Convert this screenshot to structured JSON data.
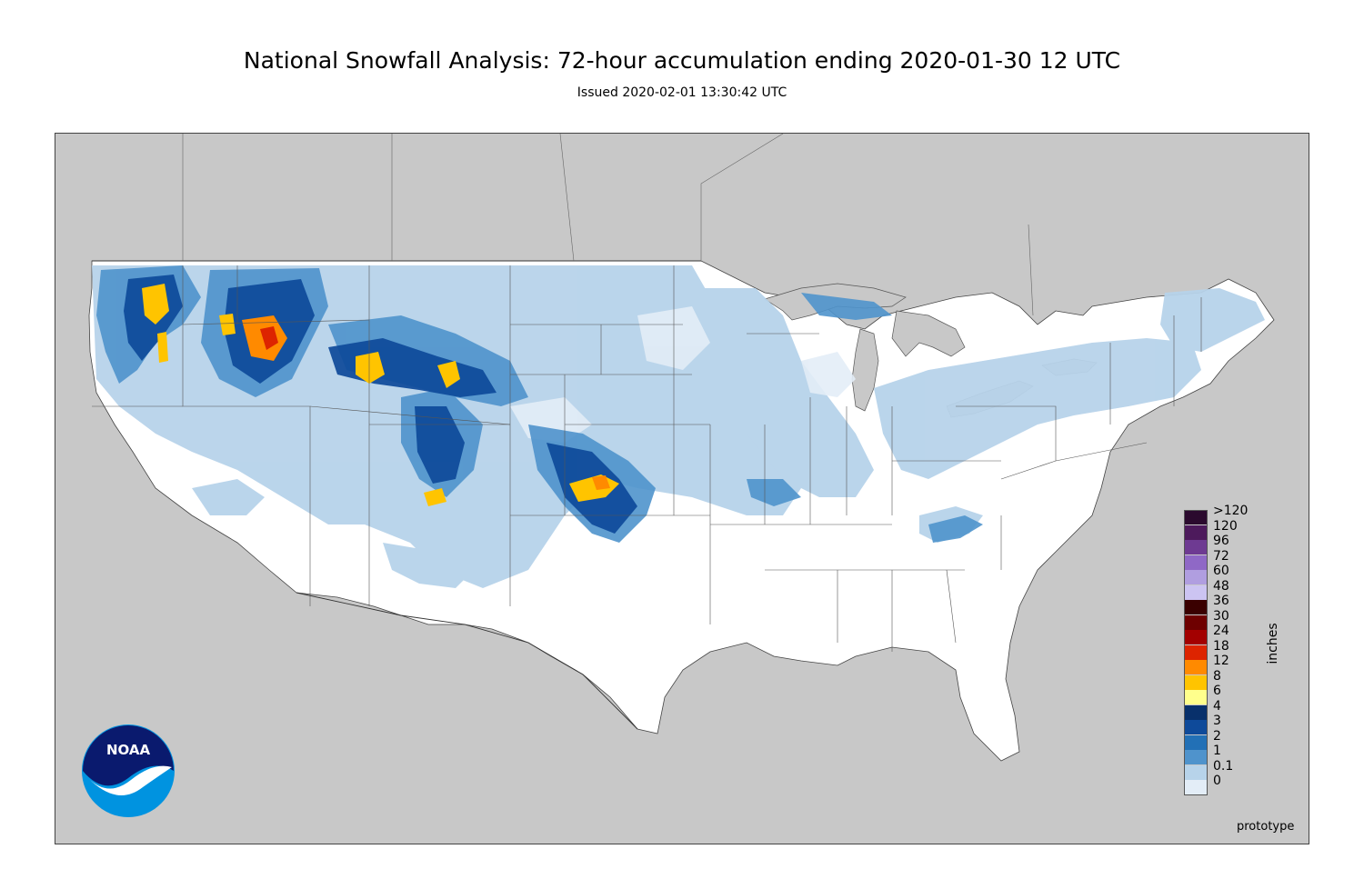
{
  "title": "National Snowfall Analysis: 72-hour accumulation ending 2020-01-30 12 UTC",
  "subtitle": "Issued 2020-02-01 13:30:42 UTC",
  "legend": {
    "units": "inches",
    "items": [
      {
        "label": ">120",
        "color": "#2b0a2e"
      },
      {
        "label": "120",
        "color": "#4d1a5c"
      },
      {
        "label": "96",
        "color": "#6e3a92"
      },
      {
        "label": "72",
        "color": "#8f68c6"
      },
      {
        "label": "60",
        "color": "#b09ee0"
      },
      {
        "label": "48",
        "color": "#ccc4f2"
      },
      {
        "label": "36",
        "color": "#3a0000"
      },
      {
        "label": "30",
        "color": "#6e0000"
      },
      {
        "label": "24",
        "color": "#a30000"
      },
      {
        "label": "18",
        "color": "#dd2400"
      },
      {
        "label": "12",
        "color": "#ff8a00"
      },
      {
        "label": "8",
        "color": "#ffc400"
      },
      {
        "label": "6",
        "color": "#ffff8c"
      },
      {
        "label": "4",
        "color": "#08306b"
      },
      {
        "label": "3",
        "color": "#0e4a9a"
      },
      {
        "label": "2",
        "color": "#2270b6"
      },
      {
        "label": "1",
        "color": "#4f93cc"
      },
      {
        "label": "0.1",
        "color": "#b7d3ea"
      },
      {
        "label": "0",
        "color": "#e3edf7"
      }
    ]
  },
  "prototype_label": "prototype",
  "logo_text": "NOAA",
  "colors": {
    "land_outside": "#c8c8c8",
    "conus_land": "#ffffff",
    "water": "#c8c8c8",
    "borders": "#555555"
  }
}
